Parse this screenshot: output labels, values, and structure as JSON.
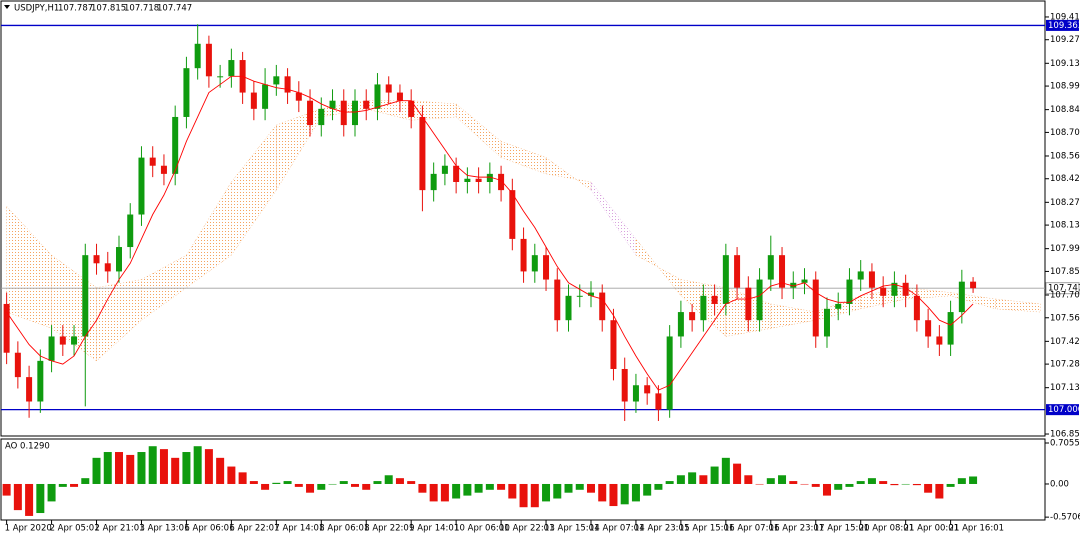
{
  "chart_data": [
    {
      "type": "candlestick",
      "title": "USDJPY,H1",
      "header_values": [
        107.787,
        107.815,
        107.718,
        107.747
      ],
      "up_color": "#0f9b0f",
      "down_color": "#e8120c",
      "open": [
        107.65,
        107.35,
        107.2,
        107.05,
        107.3,
        107.45,
        107.4,
        107.45,
        107.95,
        107.9,
        107.85,
        108.0,
        108.2,
        108.55,
        108.5,
        108.45,
        108.8,
        109.1,
        109.25,
        109.05,
        109.05,
        109.15,
        108.95,
        108.85,
        109.0,
        109.05,
        108.95,
        108.9,
        108.75,
        108.85,
        108.9,
        108.75,
        108.9,
        108.85,
        109.0,
        108.95,
        108.9,
        108.8,
        108.35,
        108.45,
        108.5,
        108.4,
        108.42,
        108.4,
        108.45,
        108.35,
        108.05,
        107.85,
        107.95,
        107.8,
        107.55,
        107.7,
        107.7,
        107.72,
        107.55,
        107.25,
        107.05,
        107.15,
        107.1,
        107.0,
        107.45,
        107.6,
        107.55,
        107.7,
        107.65,
        107.95,
        107.75,
        107.55,
        107.8,
        107.95,
        107.75,
        107.78,
        107.8,
        107.45,
        107.62,
        107.65,
        107.8,
        107.85,
        107.75,
        107.7,
        107.78,
        107.7,
        107.55,
        107.45,
        107.4,
        107.6,
        107.787
      ],
      "high": [
        107.72,
        107.42,
        107.27,
        107.37,
        107.52,
        107.52,
        107.52,
        108.02,
        108.02,
        107.97,
        108.07,
        108.27,
        108.62,
        108.62,
        108.57,
        108.87,
        109.17,
        109.37,
        109.3,
        109.12,
        109.22,
        109.2,
        109.02,
        109.1,
        109.12,
        109.1,
        109.02,
        108.97,
        108.92,
        108.97,
        108.97,
        108.97,
        108.97,
        109.07,
        109.05,
        109.0,
        108.97,
        108.87,
        108.52,
        108.57,
        108.55,
        108.49,
        108.49,
        108.52,
        108.5,
        108.42,
        108.12,
        108.02,
        108.0,
        107.87,
        107.77,
        107.77,
        107.79,
        107.77,
        107.62,
        107.32,
        107.22,
        107.2,
        107.15,
        107.52,
        107.67,
        107.65,
        107.77,
        107.77,
        108.02,
        108.0,
        107.82,
        107.87,
        108.07,
        108.0,
        107.85,
        107.87,
        107.85,
        107.69,
        107.72,
        107.87,
        107.92,
        107.9,
        107.82,
        107.85,
        107.83,
        107.77,
        107.62,
        107.52,
        107.67,
        107.86,
        107.815
      ],
      "low": [
        107.28,
        107.13,
        106.95,
        106.98,
        107.23,
        107.33,
        107.33,
        107.02,
        107.83,
        107.78,
        107.78,
        107.93,
        108.13,
        108.43,
        108.38,
        108.38,
        108.73,
        109.03,
        108.98,
        108.98,
        108.98,
        108.88,
        108.78,
        108.78,
        108.93,
        108.88,
        108.83,
        108.68,
        108.68,
        108.78,
        108.68,
        108.68,
        108.78,
        108.78,
        108.88,
        108.83,
        108.73,
        108.22,
        108.28,
        108.38,
        108.33,
        108.33,
        108.33,
        108.33,
        108.28,
        107.98,
        107.78,
        107.78,
        107.73,
        107.48,
        107.48,
        107.63,
        107.63,
        107.48,
        107.18,
        106.93,
        106.98,
        107.03,
        106.93,
        106.95,
        107.38,
        107.48,
        107.48,
        107.58,
        107.58,
        107.68,
        107.48,
        107.48,
        107.73,
        107.68,
        107.68,
        107.71,
        107.38,
        107.38,
        107.55,
        107.58,
        107.73,
        107.68,
        107.63,
        107.63,
        107.63,
        107.48,
        107.38,
        107.33,
        107.33,
        107.53,
        107.718
      ],
      "close": [
        107.35,
        107.2,
        107.05,
        107.3,
        107.45,
        107.4,
        107.45,
        107.95,
        107.9,
        107.85,
        108.0,
        108.2,
        108.55,
        108.5,
        108.45,
        108.8,
        109.1,
        109.25,
        109.05,
        109.05,
        109.15,
        108.95,
        108.85,
        109.0,
        109.05,
        108.95,
        108.9,
        108.75,
        108.85,
        108.9,
        108.75,
        108.9,
        108.85,
        109.0,
        108.95,
        108.9,
        108.8,
        108.35,
        108.45,
        108.5,
        108.4,
        108.42,
        108.4,
        108.45,
        108.35,
        108.05,
        107.85,
        107.95,
        107.8,
        107.55,
        107.7,
        107.7,
        107.72,
        107.55,
        107.25,
        107.05,
        107.15,
        107.1,
        107.0,
        107.45,
        107.6,
        107.55,
        107.7,
        107.65,
        107.95,
        107.75,
        107.55,
        107.8,
        107.95,
        107.75,
        107.78,
        107.8,
        107.45,
        107.62,
        107.65,
        107.8,
        107.85,
        107.75,
        107.7,
        107.78,
        107.7,
        107.55,
        107.45,
        107.4,
        107.6,
        107.787,
        107.747
      ],
      "ma": {
        "color": "#ff0000",
        "values": [
          107.6,
          107.5,
          107.4,
          107.33,
          107.3,
          107.28,
          107.33,
          107.45,
          107.55,
          107.68,
          107.8,
          107.9,
          108.05,
          108.2,
          108.32,
          108.47,
          108.65,
          108.8,
          108.95,
          109.0,
          109.05,
          109.05,
          109.02,
          109.0,
          108.98,
          108.97,
          108.95,
          108.92,
          108.88,
          108.85,
          108.83,
          108.83,
          108.84,
          108.86,
          108.88,
          108.9,
          108.9,
          108.8,
          108.7,
          108.6,
          108.5,
          108.44,
          108.43,
          108.43,
          108.41,
          108.33,
          108.22,
          108.12,
          108.0,
          107.88,
          107.78,
          107.74,
          107.7,
          107.68,
          107.58,
          107.45,
          107.33,
          107.22,
          107.12,
          107.15,
          107.25,
          107.35,
          107.45,
          107.55,
          107.65,
          107.68,
          107.68,
          107.7,
          107.76,
          107.78,
          107.76,
          107.78,
          107.72,
          107.68,
          107.66,
          107.66,
          107.7,
          107.73,
          107.76,
          107.77,
          107.75,
          107.7,
          107.63,
          107.55,
          107.52,
          107.58,
          107.65
        ]
      },
      "cloud": {
        "colors": [
          "#f4a460",
          "#d8a0dd"
        ],
        "x": [
          0,
          4,
          8,
          12,
          16,
          20,
          24,
          28,
          32,
          36,
          40,
          44,
          48,
          52,
          56,
          60,
          64,
          68,
          72,
          76,
          80,
          84,
          88,
          92
        ],
        "span_a": [
          108.25,
          107.95,
          107.75,
          107.8,
          107.95,
          108.4,
          108.75,
          108.85,
          108.9,
          108.9,
          108.88,
          108.65,
          108.55,
          108.35,
          107.95,
          107.8,
          107.75,
          107.65,
          107.6,
          107.7,
          107.75,
          107.72,
          107.68,
          107.65
        ],
        "span_b": [
          107.6,
          107.5,
          107.3,
          107.55,
          107.75,
          107.95,
          108.35,
          108.8,
          108.85,
          108.78,
          108.8,
          108.55,
          108.45,
          108.4,
          108.05,
          107.7,
          107.45,
          107.5,
          107.55,
          107.62,
          107.68,
          107.7,
          107.62,
          107.6
        ]
      },
      "hlines": [
        {
          "color": "#0000c8",
          "level": 109.363
        },
        {
          "color": "#0000c8",
          "level": {
            "value": 107.0,
            "label": "107.000"
          }
        }
      ],
      "price_line": {
        "color": "#a0a0a0",
        "level": 107.747
      },
      "xlim": [
        -0.5,
        92.4
      ],
      "ylim": [
        106.844,
        109.507
      ],
      "yticks": [
        109.415,
        109.275,
        {
          "value": 109.13,
          "label": "109.130"
        },
        {
          "value": 108.99,
          "label": "108.990"
        },
        108.845,
        108.705,
        {
          "value": 108.56,
          "label": "108.560"
        },
        {
          "value": 108.42,
          "label": "108.420"
        },
        108.275,
        108.135,
        {
          "value": 107.99,
          "label": "107.990"
        },
        {
          "value": 107.85,
          "label": "107.850"
        },
        107.705,
        107.565,
        {
          "value": 107.42,
          "label": "107.420"
        },
        {
          "value": 107.28,
          "label": "107.280"
        },
        107.135,
        {
          "value": 106.85,
          "label": "106.850"
        }
      ]
    },
    {
      "type": "bar",
      "title": "AO 0.1290",
      "up_color": "#0f9b0f",
      "down_color": "#e8120c",
      "values": [
        -0.2,
        -0.45,
        -0.55,
        -0.5,
        -0.3,
        -0.05,
        -0.05,
        0.1,
        0.45,
        0.55,
        0.55,
        0.5,
        0.55,
        0.65,
        0.6,
        0.45,
        0.55,
        0.65,
        0.6,
        0.45,
        0.3,
        0.2,
        0.05,
        -0.1,
        0.02,
        0.05,
        -0.05,
        -0.15,
        -0.1,
        0.0,
        0.05,
        -0.05,
        -0.1,
        0.05,
        0.15,
        0.1,
        0.05,
        -0.15,
        -0.3,
        -0.3,
        -0.25,
        -0.2,
        -0.15,
        -0.1,
        -0.1,
        -0.25,
        -0.4,
        -0.4,
        -0.3,
        -0.25,
        -0.15,
        -0.1,
        -0.15,
        -0.3,
        -0.38,
        -0.35,
        -0.3,
        -0.2,
        -0.1,
        0.05,
        0.15,
        0.2,
        0.15,
        0.3,
        0.45,
        0.35,
        0.15,
        0.0,
        0.1,
        0.15,
        0.05,
        0.0,
        -0.05,
        -0.2,
        -0.1,
        -0.05,
        0.05,
        0.1,
        0.05,
        -0.02,
        0.0,
        -0.02,
        -0.15,
        -0.25,
        -0.05,
        0.1,
        0.129
      ],
      "xlim": [
        -0.5,
        92.4
      ],
      "ylim": [
        -0.62,
        0.757
      ],
      "yticks": [
        0.7055,
        {
          "value": 0,
          "label": "0.00"
        },
        -0.5706
      ],
      "xticks": [
        {
          "value": 0,
          "label": "1 Apr 2020"
        },
        {
          "value": 4,
          "label": "2 Apr 05:01"
        },
        {
          "value": 8,
          "label": "2 Apr 21:01"
        },
        {
          "value": 12,
          "label": "3 Apr 13:01"
        },
        {
          "value": 16,
          "label": "6 Apr 06:01"
        },
        {
          "value": 20,
          "label": "6 Apr 22:01"
        },
        {
          "value": 24,
          "label": "7 Apr 14:01"
        },
        {
          "value": 28,
          "label": "8 Apr 06:01"
        },
        {
          "value": 32,
          "label": "8 Apr 22:01"
        },
        {
          "value": 36,
          "label": "9 Apr 14:01"
        },
        {
          "value": 40,
          "label": "10 Apr 06:01"
        },
        {
          "value": 44,
          "label": "10 Apr 22:01"
        },
        {
          "value": 48,
          "label": "13 Apr 15:01"
        },
        {
          "value": 52,
          "label": "14 Apr 07:01"
        },
        {
          "value": 56,
          "label": "14 Apr 23:01"
        },
        {
          "value": 60,
          "label": "15 Apr 15:01"
        },
        {
          "value": 64,
          "label": "16 Apr 07:01"
        },
        {
          "value": 68,
          "label": "16 Apr 23:01"
        },
        {
          "value": 72,
          "label": "17 Apr 15:01"
        },
        {
          "value": 76,
          "label": "20 Apr 08:01"
        },
        {
          "value": 80,
          "label": "21 Apr 00:01"
        },
        {
          "value": 84,
          "label": "21 Apr 16:01"
        }
      ]
    }
  ]
}
